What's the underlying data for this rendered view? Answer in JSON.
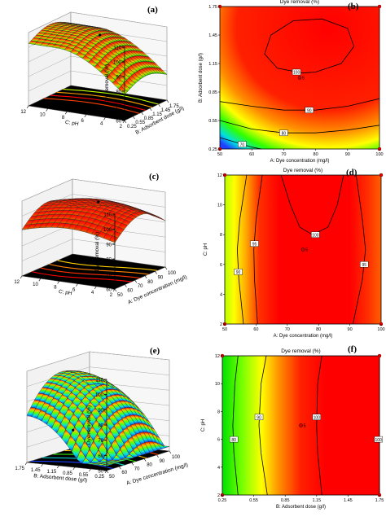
{
  "panels": [
    {
      "id": "a",
      "letter": "(a)"
    },
    {
      "id": "b",
      "letter": "(b)"
    },
    {
      "id": "c",
      "letter": "(c)"
    },
    {
      "id": "d",
      "letter": "(d)"
    },
    {
      "id": "e",
      "letter": "(e)"
    },
    {
      "id": "f",
      "letter": "(f)"
    }
  ],
  "chart_data": [
    {
      "id": "a",
      "type": "surface",
      "title": "",
      "zlabel": "Dye removal (%)",
      "z_ticks": [
        "60",
        "70",
        "80",
        "90",
        "100",
        "110"
      ],
      "x_axis_label": "B: Adsorbent dose (g/l)",
      "x_ticks": [
        "0.25",
        "0.55",
        "0.85",
        "1.15",
        "1.45",
        "1.75"
      ],
      "y_axis_label": "C: pH",
      "y_ticks": [
        "2",
        "4",
        "6",
        "8",
        "10",
        "12"
      ],
      "zlim": [
        60,
        110
      ],
      "grid": true
    },
    {
      "id": "b",
      "type": "heatmap",
      "title": "Dye removal (%)",
      "xlabel": "A: Dye concentration (mg/l)",
      "ylabel": "B: Adsorbent dose (g/l)",
      "x_ticks": [
        "50",
        "60",
        "70",
        "80",
        "90",
        "100"
      ],
      "y_ticks": [
        "0.25",
        "0.55",
        "0.85",
        "1.15",
        "1.45",
        "1.75"
      ],
      "xlim": [
        50,
        100
      ],
      "ylim": [
        0.25,
        1.75
      ],
      "contour_labels": [
        "70",
        "80",
        "90",
        "100"
      ],
      "design_point": {
        "x": 75,
        "y": 1.0,
        "label": "5"
      },
      "color_scale": [
        "#1a1aff",
        "#00ffff",
        "#00ff00",
        "#ffff00",
        "#ff0000"
      ],
      "grid": false
    },
    {
      "id": "c",
      "type": "surface",
      "title": "",
      "zlabel": "Dye removal (%)",
      "z_ticks": [
        "60",
        "70",
        "80",
        "90",
        "100",
        "110"
      ],
      "x_axis_label": "A: Dye concentration (mg/l)",
      "x_ticks": [
        "50",
        "60",
        "70",
        "80",
        "90",
        "100"
      ],
      "y_axis_label": "C: pH",
      "y_ticks": [
        "2",
        "4",
        "6",
        "8",
        "10",
        "12"
      ],
      "zlim": [
        60,
        110
      ],
      "grid": true
    },
    {
      "id": "d",
      "type": "heatmap",
      "title": "Dye removal (%)",
      "xlabel": "A: Dye concentration (mg/l)",
      "ylabel": "C: pH",
      "x_ticks": [
        "50",
        "60",
        "70",
        "80",
        "90",
        "100"
      ],
      "y_ticks": [
        "2",
        "4",
        "6",
        "8",
        "10",
        "12"
      ],
      "xlim": [
        50,
        100
      ],
      "ylim": [
        2,
        12
      ],
      "contour_labels": [
        "90",
        "95",
        "100",
        "95"
      ],
      "design_point": {
        "x": 75,
        "y": 7,
        "label": "5"
      },
      "color_scale": [
        "#00ff00",
        "#ffff00",
        "#ff0000"
      ],
      "grid": false
    },
    {
      "id": "e",
      "type": "surface",
      "title": "",
      "zlabel": "Dye removal (%)",
      "z_ticks": [
        "50",
        "60",
        "70",
        "80",
        "90",
        "100",
        "110"
      ],
      "x_axis_label": "A: Dye concentration (mg/l)",
      "x_ticks": [
        "50",
        "60",
        "70",
        "80",
        "90",
        "100"
      ],
      "y_axis_label": "B: Adsorbent dose (g/l)",
      "y_ticks": [
        "0.25",
        "0.55",
        "0.85",
        "1.15",
        "1.45",
        "1.75"
      ],
      "zlim": [
        50,
        110
      ],
      "grid": true
    },
    {
      "id": "f",
      "type": "heatmap",
      "title": "Dye removal (%)",
      "xlabel": "B: Adsorbent dose (g/l)",
      "ylabel": "C: pH",
      "x_ticks": [
        "0.25",
        "0.55",
        "0.85",
        "1.15",
        "1.45",
        "1.75"
      ],
      "y_ticks": [
        "2",
        "4",
        "6",
        "8",
        "10",
        "12"
      ],
      "xlim": [
        0.25,
        1.75
      ],
      "ylim": [
        2,
        12
      ],
      "contour_labels": [
        "80",
        "90",
        "100",
        "100"
      ],
      "design_point": {
        "x": 1.0,
        "y": 7,
        "label": "5"
      },
      "color_scale": [
        "#00ff00",
        "#ffff00",
        "#ff0000"
      ],
      "grid": false
    }
  ]
}
